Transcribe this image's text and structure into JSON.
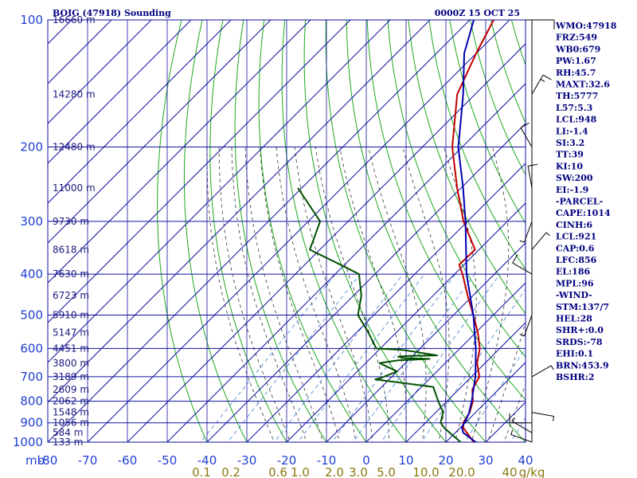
{
  "header": {
    "title": "BOIG (47918) Sounding",
    "time": "0000Z 15 OCT 25"
  },
  "indices": [
    "WMO:47918",
    "FRZ:549",
    "WB0:679",
    "PW:1.67",
    "RH:45.7",
    "MAXT:32.6",
    "TH:5777",
    "L57:5.3",
    "LCL:948",
    "LI:-1.4",
    "SI:3.2",
    "TT:39",
    "KI:10",
    "SW:200",
    "EI:-1.9",
    "-PARCEL-",
    "CAPE:1014",
    "CINH:6",
    "LCL:921",
    "CAP:0.6",
    "LFC:856",
    "EL:186",
    "MPL:96",
    "-WIND-",
    "STM:137/7",
    "HEL:28",
    "SHR+:0.0",
    "SRDS:-78",
    "EHI:0.1",
    "BRN:453.9",
    "BSHR:2"
  ],
  "pressure_label_prefix": "mb",
  "chart_data": {
    "type": "skew-t",
    "x_axis": {
      "unit": "°C",
      "range": [
        -80,
        40
      ],
      "ticks": [
        -80,
        -70,
        -60,
        -50,
        -40,
        -30,
        -20,
        -10,
        0,
        10,
        20,
        30,
        40
      ],
      "tick_labels": [
        "-80",
        "-70",
        "-60",
        "-50",
        "-40",
        "-30",
        "-20",
        "-10",
        "0",
        "10",
        "20",
        "30",
        "40"
      ]
    },
    "y_axis": {
      "unit": "mb",
      "scale": "log",
      "range": [
        1000,
        100
      ],
      "ticks": [
        100,
        200,
        300,
        400,
        500,
        600,
        700,
        800,
        900,
        1000
      ],
      "tick_labels": [
        "100",
        "200",
        "300",
        "400",
        "500",
        "600",
        "700",
        "800",
        "900",
        "1000"
      ]
    },
    "height_labels": [
      {
        "p": 100,
        "text": "16660 m"
      },
      {
        "p": 150,
        "text": "14280 m"
      },
      {
        "p": 200,
        "text": "12480 m"
      },
      {
        "p": 250,
        "text": "11000 m"
      },
      {
        "p": 300,
        "text": "9730 m"
      },
      {
        "p": 350,
        "text": "8618 m"
      },
      {
        "p": 400,
        "text": "7630 m"
      },
      {
        "p": 450,
        "text": "6723 m"
      },
      {
        "p": 500,
        "text": "5910 m"
      },
      {
        "p": 550,
        "text": "5147 m"
      },
      {
        "p": 600,
        "text": "4451 m"
      },
      {
        "p": 650,
        "text": "3800 m"
      },
      {
        "p": 700,
        "text": "3189 m"
      },
      {
        "p": 750,
        "text": "2609 m"
      },
      {
        "p": 800,
        "text": "2062 m"
      },
      {
        "p": 850,
        "text": "1548 m"
      },
      {
        "p": 900,
        "text": "1056 m"
      },
      {
        "p": 950,
        "text": "584 m"
      },
      {
        "p": 1000,
        "text": "133 m"
      }
    ],
    "mixing_ratio_labels": [
      "0.1",
      "0.2",
      "0.6",
      "1.0",
      "2.0",
      "3.0",
      "5.0",
      "10.0",
      "20.0",
      "40",
      "g/kg"
    ],
    "mixing_ratios": [
      0.1,
      0.2,
      0.6,
      1.0,
      2.0,
      3.0,
      5.0,
      10.0,
      20.0,
      40.0
    ],
    "series": [
      {
        "name": "",
        "kind": "temperature",
        "color": "#c00000",
        "p": [
          1008,
          1000,
          925,
          900,
          850,
          800,
          750,
          700,
          650,
          600,
          550,
          500,
          450,
          400,
          380,
          350,
          300,
          250,
          200,
          150,
          120,
          100
        ],
        "t": [
          28.8,
          27.0,
          20.8,
          19.5,
          18.5,
          16.5,
          13.4,
          12.0,
          8.0,
          5.0,
          0.5,
          -5.0,
          -11.3,
          -18.0,
          -21.2,
          -21.0,
          -31.0,
          -41.0,
          -52.5,
          -64.5,
          -70.0,
          -74.0
        ]
      },
      {
        "name": "",
        "kind": "dewpoint",
        "color": "#005000",
        "p": [
          1000,
          925,
          900,
          850,
          800,
          750,
          740,
          710,
          705,
          680,
          650,
          640,
          635,
          632,
          627,
          625,
          623,
          610,
          605,
          600,
          550,
          500,
          450,
          400,
          380,
          350,
          300,
          250
        ],
        "t": [
          23.7,
          16.0,
          13.8,
          11.8,
          7.8,
          3.8,
          3.0,
          -13.5,
          -12.5,
          -10.0,
          -16.5,
          -12.5,
          -5.0,
          -12.0,
          -13.5,
          -11.0,
          -4.0,
          -11.0,
          -14.0,
          -21.0,
          -27.0,
          -34.0,
          -38.0,
          -44.0,
          -51.0,
          -62.5,
          -67.0,
          -81.0
        ]
      },
      {
        "name": "",
        "kind": "parcel",
        "color": "#0000b0",
        "p": [
          1008,
          1000,
          950,
          921,
          900,
          856,
          800,
          700,
          600,
          500,
          400,
          300,
          250,
          200,
          186,
          150,
          120,
          100
        ],
        "t": [
          28.8,
          27.5,
          22.0,
          20.2,
          19.8,
          18.6,
          16.2,
          11.0,
          4.0,
          -5.0,
          -17.0,
          -30.5,
          -39.5,
          -51.0,
          -54.0,
          -63.0,
          -73.0,
          -79.0
        ]
      }
    ],
    "wind_barbs": [
      {
        "p": 1000,
        "dir": 290,
        "spd": 5
      },
      {
        "p": 950,
        "dir": 300,
        "spd": 5
      },
      {
        "p": 900,
        "dir": 270,
        "spd": 10
      },
      {
        "p": 850,
        "dir": 100,
        "spd": 5
      },
      {
        "p": 700,
        "dir": 60,
        "spd": 5
      },
      {
        "p": 500,
        "dir": 200,
        "spd": 5
      },
      {
        "p": 400,
        "dir": 300,
        "spd": 10
      },
      {
        "p": 350,
        "dir": 40,
        "spd": 5
      },
      {
        "p": 300,
        "dir": 200,
        "spd": 5
      },
      {
        "p": 250,
        "dir": 350,
        "spd": 10
      },
      {
        "p": 200,
        "dir": 330,
        "spd": 10
      },
      {
        "p": 150,
        "dir": 30,
        "spd": 15
      },
      {
        "p": 100,
        "dir": 90,
        "spd": 10
      }
    ],
    "colors": {
      "grid": "#1010a0",
      "dry_adiabat": "#1da81d",
      "moist_adiabat": "#333333",
      "mixing_ratio": "#3f7fd0",
      "axis_labels": "#1f3fd0",
      "mixing_labels": "#8a7a10",
      "header": "#000080",
      "wind": "#000000"
    }
  }
}
